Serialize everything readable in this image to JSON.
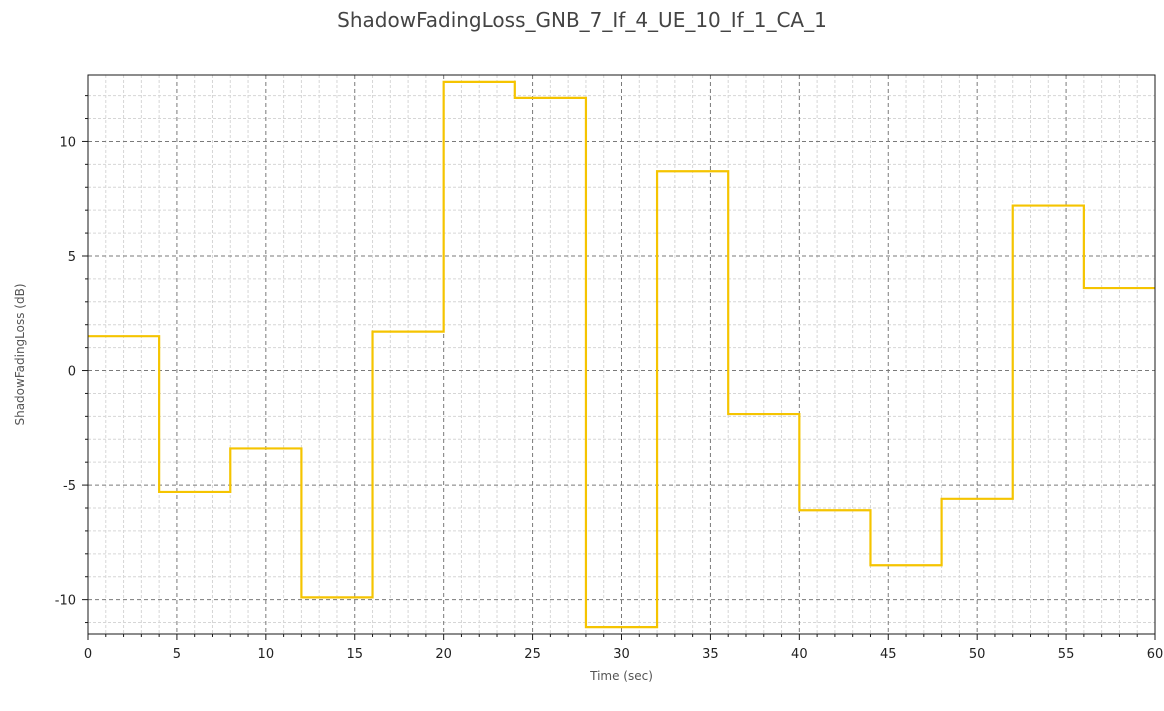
{
  "chart_data": {
    "type": "line",
    "title": "ShadowFadingLoss_GNB_7_If_4_UE_10_If_1_CA_1",
    "xlabel": "Time (sec)",
    "ylabel": "ShadowFadingLoss (dB)",
    "xlim": [
      0,
      60
    ],
    "ylim": [
      -11.5,
      12.9
    ],
    "xticks": [
      0,
      5,
      10,
      15,
      20,
      25,
      30,
      35,
      40,
      45,
      50,
      55,
      60
    ],
    "yticks": [
      -10,
      -5,
      0,
      5,
      10
    ],
    "grid": true,
    "legend": "none",
    "series": [
      {
        "color": "#F5C400",
        "style": "step",
        "x": [
          0,
          4,
          8,
          12,
          16,
          20,
          24,
          28,
          32,
          36,
          40,
          44,
          48,
          52,
          56,
          60
        ],
        "y": [
          1.5,
          -5.3,
          -3.4,
          -9.9,
          1.7,
          12.6,
          11.9,
          -11.2,
          8.7,
          -1.9,
          -6.1,
          -8.5,
          -5.6,
          7.2,
          3.6,
          3.6
        ]
      }
    ]
  }
}
